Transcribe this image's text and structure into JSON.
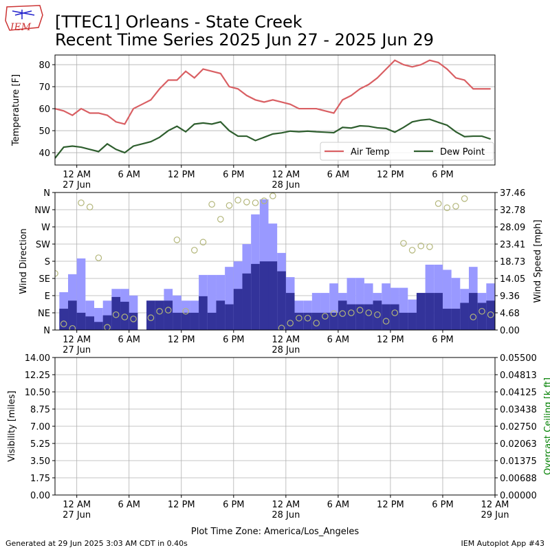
{
  "header": {
    "title": "[TTEC1] Orleans - State Creek",
    "subtitle": "Recent Time Series 2025 Jun 27 - 2025 Jun 29",
    "logo_text": "IEM"
  },
  "footer": {
    "generated": "Generated at 29 Jun 2025 3:03 AM CDT in 0.40s",
    "app": "IEM Autoplot App #43"
  },
  "chart_data": [
    {
      "type": "line",
      "ylabel": "Temperature [F]",
      "x": [
        -2.5,
        -1.5,
        -0.5,
        0.5,
        1.5,
        2.5,
        3.5,
        4.5,
        5.5,
        6.5,
        7.5,
        8.5,
        9.5,
        10.5,
        11.5,
        12.5,
        13.5,
        14.5,
        15.5,
        16.5,
        17.5,
        18.5,
        19.5,
        20.5,
        21.5,
        22.5,
        23.5,
        24.5,
        25.5,
        26.5,
        27.5,
        28.5,
        29.5,
        30.5,
        31.5,
        32.5,
        33.5,
        34.5,
        35.5,
        36.5,
        37.5,
        38.5,
        39.5,
        40.5,
        41.5,
        42.5,
        43.5,
        44.5,
        45.5,
        46.5,
        47.5
      ],
      "series": [
        {
          "name": "Air Temp",
          "color": "#d95f63",
          "values": [
            60,
            59,
            57,
            60,
            58,
            58,
            57,
            54,
            53,
            60,
            62,
            64,
            69,
            73,
            73,
            77,
            74,
            78,
            77,
            76,
            70,
            69,
            66,
            64,
            63,
            64,
            63,
            62,
            60,
            60,
            60,
            59,
            58,
            64,
            66,
            69,
            71,
            74,
            78,
            82,
            80,
            79,
            80,
            82,
            81,
            78,
            74,
            73,
            69,
            69,
            69
          ]
        },
        {
          "name": "Dew Point",
          "color": "#2e5e2e",
          "values": [
            37.5,
            42.5,
            43,
            42.5,
            41.5,
            40.5,
            44,
            41.5,
            40,
            43,
            44,
            45,
            47,
            50,
            52,
            49.5,
            53,
            53.5,
            53,
            54,
            50,
            47.5,
            47.5,
            45.5,
            47,
            48.5,
            49,
            49.8,
            49.5,
            49.8,
            49.5,
            49.3,
            49.1,
            51.5,
            51.2,
            52.2,
            52,
            51.3,
            51,
            49.3,
            51.5,
            54,
            54.8,
            55.2,
            53.8,
            52.5,
            49.5,
            47.3,
            47.5,
            47.5,
            46.2
          ]
        }
      ],
      "xlim": [
        -2.5,
        48
      ],
      "ylim": [
        34.4,
        84.4
      ],
      "yticks": [
        40,
        50,
        60,
        70,
        80
      ],
      "xticks": [
        {
          "value": 0,
          "label": "12 AM\n27 Jun"
        },
        {
          "value": 6,
          "label": "6 AM"
        },
        {
          "value": 12,
          "label": "12 PM"
        },
        {
          "value": 18,
          "label": "6 PM"
        },
        {
          "value": 24,
          "label": "12 AM\n28 Jun"
        },
        {
          "value": 30,
          "label": "6 AM"
        },
        {
          "value": 36,
          "label": "12 PM"
        },
        {
          "value": 42,
          "label": "6 PM"
        }
      ],
      "grid": true,
      "legend": "lower right"
    },
    {
      "type": "combo",
      "ylabel": "Wind Direction",
      "y2label": "Wind Speed [mph]",
      "x": [
        -2.5,
        -1.5,
        -0.5,
        0.5,
        1.5,
        2.5,
        3.5,
        4.5,
        5.5,
        6.5,
        7.5,
        8.5,
        9.5,
        10.5,
        11.5,
        12.5,
        13.5,
        14.5,
        15.5,
        16.5,
        17.5,
        18.5,
        19.5,
        20.5,
        21.5,
        22.5,
        23.5,
        24.5,
        25.5,
        26.5,
        27.5,
        28.5,
        29.5,
        30.5,
        31.5,
        32.5,
        33.5,
        34.5,
        35.5,
        36.5,
        37.5,
        38.5,
        39.5,
        40.5,
        41.5,
        42.5,
        43.5,
        44.5,
        45.5,
        46.5,
        47.5
      ],
      "series": [
        {
          "type": "bar",
          "axis": "y2",
          "color": "#9999ff",
          "x": [
            -1.5,
            -0.5,
            0.5,
            1.5,
            2.5,
            3.5,
            4.5,
            5.5,
            6.5,
            7.5,
            8.5,
            9.5,
            10.5,
            11.5,
            12.5,
            13.5,
            14.5,
            15.5,
            16.5,
            17.5,
            18.5,
            19.5,
            20.5,
            21.5,
            22.5,
            23.5,
            24.5,
            25.5,
            26.5,
            27.5,
            28.5,
            29.5,
            30.5,
            31.5,
            32.5,
            33.5,
            34.5,
            35.5,
            36.5,
            37.5,
            38.5,
            39.5,
            40.5,
            41.5,
            42.5,
            43.5,
            44.5,
            45.5,
            46.5,
            47.5
          ],
          "values": [
            10.3,
            15.2,
            19.5,
            8.0,
            6.0,
            8.0,
            11.2,
            11.2,
            9.4,
            null,
            8.0,
            8.0,
            11.2,
            9.4,
            8.0,
            8.0,
            15.0,
            15.0,
            15.0,
            17.2,
            18.7,
            23.4,
            31.5,
            35.6,
            29.0,
            21.0,
            14.4,
            8.0,
            8.0,
            10.1,
            10.1,
            12.7,
            10.1,
            14.2,
            14.2,
            12.7,
            10.1,
            12.7,
            11.5,
            11.5,
            8.3,
            10.1,
            17.8,
            17.8,
            16.4,
            14.2,
            11.2,
            17.2,
            10.1,
            12.7
          ]
        },
        {
          "type": "bar",
          "axis": "y2",
          "color": "#33339a",
          "x": [
            -1.5,
            -0.5,
            0.5,
            1.5,
            2.5,
            3.5,
            4.5,
            5.5,
            6.5,
            7.5,
            8.5,
            9.5,
            10.5,
            11.5,
            12.5,
            13.5,
            14.5,
            15.5,
            16.5,
            17.5,
            18.5,
            19.5,
            20.5,
            21.5,
            22.5,
            23.5,
            24.5,
            25.5,
            26.5,
            27.5,
            28.5,
            29.5,
            30.5,
            31.5,
            32.5,
            33.5,
            34.5,
            35.5,
            36.5,
            37.5,
            38.5,
            39.5,
            40.5,
            41.5,
            42.5,
            43.5,
            44.5,
            45.5,
            46.5,
            47.5
          ],
          "values": [
            5.8,
            8.0,
            4.7,
            3.7,
            2.2,
            4.0,
            9.0,
            7.7,
            4.7,
            null,
            8.0,
            8.0,
            8.0,
            4.7,
            4.7,
            4.7,
            9.2,
            4.7,
            8.0,
            7.0,
            11.2,
            15.4,
            18.0,
            18.7,
            18.7,
            16.0,
            10.1,
            4.7,
            4.7,
            4.7,
            4.7,
            4.7,
            8.0,
            7.0,
            7.0,
            7.0,
            8.0,
            7.0,
            7.0,
            4.7,
            4.7,
            10.1,
            10.1,
            10.1,
            5.8,
            5.8,
            7.4,
            10.1,
            7.4,
            8.0
          ]
        },
        {
          "type": "scatter",
          "color": "#b3b67a",
          "values": [
            148,
            16,
            4,
            333,
            322,
            189,
            7,
            40,
            34,
            29,
            null,
            32,
            49,
            52,
            236,
            49,
            209,
            230,
            329,
            290,
            326,
            340,
            335,
            333,
            338,
            351,
            5,
            18,
            31,
            31,
            18,
            36,
            43,
            43,
            45,
            52,
            45,
            40,
            23,
            45,
            227,
            209,
            220,
            218,
            331,
            320,
            324,
            344,
            34,
            49,
            40
          ]
        }
      ],
      "xlim": [
        -2.5,
        48
      ],
      "ylim": [
        0,
        360
      ],
      "yticks": [
        {
          "value": 0,
          "label": "N"
        },
        {
          "value": 45,
          "label": "NE"
        },
        {
          "value": 90,
          "label": "E"
        },
        {
          "value": 135,
          "label": "SE"
        },
        {
          "value": 180,
          "label": "S"
        },
        {
          "value": 225,
          "label": "SW"
        },
        {
          "value": 270,
          "label": "W"
        },
        {
          "value": 315,
          "label": "NW"
        },
        {
          "value": 360,
          "label": "N"
        }
      ],
      "y2lim": [
        0,
        37.46
      ],
      "y2ticks": [
        {
          "value": 0,
          "label": "0.00"
        },
        4.68,
        9.36,
        14.05,
        18.73,
        23.41,
        28.09,
        32.78,
        37.46
      ],
      "xticks": [
        {
          "value": 0,
          "label": "12 AM\n27 Jun"
        },
        {
          "value": 6,
          "label": "6 AM"
        },
        {
          "value": 12,
          "label": "12 PM"
        },
        {
          "value": 18,
          "label": "6 PM"
        },
        {
          "value": 24,
          "label": "12 AM\n28 Jun"
        },
        {
          "value": 30,
          "label": "6 AM"
        },
        {
          "value": 36,
          "label": "12 PM"
        },
        {
          "value": 42,
          "label": "6 PM"
        }
      ],
      "grid": true
    },
    {
      "type": "line",
      "ylabel": "Visibility [miles]",
      "y2label": "Overcast Ceiling [k ft]",
      "y2label_color": "#008000",
      "xlabel": "Plot Time Zone: America/Los_Angeles",
      "series": [],
      "xlim": [
        -2.5,
        48
      ],
      "ylim": [
        0,
        14
      ],
      "yticks": [
        {
          "value": 0,
          "label": "0.00"
        },
        1.75,
        {
          "value": 3.5,
          "label": "3.50"
        },
        5.25,
        {
          "value": 7,
          "label": "7.00"
        },
        8.75,
        {
          "value": 10.5,
          "label": "10.50"
        },
        12.25,
        {
          "value": 14,
          "label": "14.00"
        }
      ],
      "y2lim": [
        0,
        0.055
      ],
      "y2ticks": [
        {
          "value": 0,
          "label": "0.00000"
        },
        {
          "value": 0.006875,
          "label": "0.00688"
        },
        {
          "value": 0.01375,
          "label": "0.01375"
        },
        {
          "value": 0.020625,
          "label": "0.02063"
        },
        {
          "value": 0.0275,
          "label": "0.02750"
        },
        {
          "value": 0.034375,
          "label": "0.03438"
        },
        {
          "value": 0.04125,
          "label": "0.04125"
        },
        {
          "value": 0.048125,
          "label": "0.04813"
        },
        {
          "value": 0.055,
          "label": "0.05500"
        }
      ],
      "xticks": [
        {
          "value": 0,
          "label": "12 AM\n27 Jun"
        },
        {
          "value": 6,
          "label": "6 AM"
        },
        {
          "value": 12,
          "label": "12 PM"
        },
        {
          "value": 18,
          "label": "6 PM"
        },
        {
          "value": 24,
          "label": "12 AM\n28 Jun"
        },
        {
          "value": 30,
          "label": "6 AM"
        },
        {
          "value": 36,
          "label": "12 PM"
        },
        {
          "value": 42,
          "label": "6 PM"
        },
        {
          "value": 48,
          "label": "12 AM\n29 Jun"
        }
      ],
      "grid": true
    }
  ]
}
